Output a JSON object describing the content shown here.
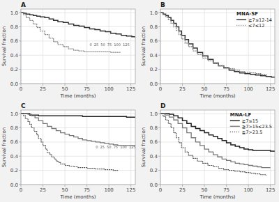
{
  "chart_data": [
    {
      "type": "step",
      "title": "A",
      "x_label": "Time (months)",
      "y_label": "Survival fraction",
      "xlim": [
        0,
        130
      ],
      "ylim": [
        0,
        1.05
      ],
      "xticks": [
        0,
        25,
        50,
        75,
        100,
        125
      ],
      "yticks": [
        {
          "value": 0,
          "label": "0.0"
        },
        0.2,
        0.4,
        0.6,
        0.8,
        {
          "value": 1,
          "label": "1.0"
        }
      ],
      "grid": true,
      "series": [
        {
          "color": "#333333",
          "line_style": "solid",
          "x": [
            0,
            3,
            6,
            10,
            14,
            18,
            22,
            27,
            32,
            37,
            42,
            48,
            54,
            60,
            66,
            72,
            78,
            84,
            90,
            96,
            102,
            108,
            114,
            120,
            126,
            130
          ],
          "values": [
            1.0,
            0.99,
            0.98,
            0.97,
            0.96,
            0.95,
            0.94,
            0.93,
            0.91,
            0.89,
            0.87,
            0.86,
            0.84,
            0.82,
            0.81,
            0.79,
            0.77,
            0.76,
            0.74,
            0.73,
            0.71,
            0.7,
            0.68,
            0.67,
            0.66,
            0.65
          ]
        },
        {
          "color": "#888888",
          "line_style": "dotted",
          "x": [
            0,
            3,
            6,
            10,
            14,
            18,
            22,
            27,
            32,
            37,
            42,
            48,
            54,
            60,
            66,
            72,
            78,
            84,
            90,
            96,
            102,
            108,
            114
          ],
          "values": [
            1.0,
            0.97,
            0.93,
            0.89,
            0.84,
            0.79,
            0.74,
            0.69,
            0.64,
            0.59,
            0.55,
            0.52,
            0.49,
            0.47,
            0.46,
            0.45,
            0.45,
            0.45,
            0.45,
            0.45,
            0.44,
            0.44,
            0.44
          ]
        }
      ],
      "annotations": [
        {
          "text": "0  25  50  75  100  125",
          "x": 78,
          "y": 0.57
        }
      ]
    },
    {
      "type": "step",
      "title": "B",
      "x_label": "Time (months)",
      "y_label": "Survival fraction",
      "xlim": [
        0,
        130
      ],
      "ylim": [
        0,
        1.05
      ],
      "xticks": [
        0,
        25,
        50,
        75,
        100,
        125
      ],
      "yticks": [
        {
          "value": 0,
          "label": "0.0"
        },
        0.2,
        0.4,
        0.6,
        0.8,
        {
          "value": 1,
          "label": "1.0"
        }
      ],
      "grid": true,
      "legend": "upper right",
      "legend_title": "MNA-SF",
      "series": [
        {
          "name": "≧7≤12-14",
          "color": "#333333",
          "line_style": "solid",
          "x": [
            0,
            3,
            6,
            9,
            12,
            15,
            18,
            21,
            24,
            28,
            32,
            37,
            42,
            48,
            54,
            60,
            66,
            72,
            78,
            84,
            90,
            96,
            102,
            108,
            114,
            120,
            126,
            130
          ],
          "values": [
            1.0,
            0.98,
            0.96,
            0.93,
            0.89,
            0.85,
            0.8,
            0.74,
            0.68,
            0.62,
            0.56,
            0.5,
            0.44,
            0.39,
            0.34,
            0.29,
            0.25,
            0.22,
            0.19,
            0.17,
            0.15,
            0.14,
            0.13,
            0.12,
            0.11,
            0.1,
            0.09,
            0.09
          ]
        },
        {
          "name": "≤7≤12",
          "color": "#888888",
          "line_style": "dotted",
          "x": [
            0,
            3,
            6,
            9,
            12,
            15,
            18,
            21,
            24,
            28,
            32,
            37,
            42,
            48,
            54,
            60,
            66,
            72,
            78,
            84,
            90,
            96,
            102,
            108,
            114,
            120
          ],
          "values": [
            1.0,
            0.97,
            0.94,
            0.9,
            0.85,
            0.8,
            0.75,
            0.69,
            0.63,
            0.57,
            0.52,
            0.46,
            0.41,
            0.36,
            0.32,
            0.28,
            0.25,
            0.23,
            0.21,
            0.19,
            0.17,
            0.16,
            0.15,
            0.14,
            0.13,
            0.12
          ]
        }
      ]
    },
    {
      "type": "step",
      "title": "C",
      "x_label": "Time (months)",
      "y_label": "Survival fraction",
      "xlim": [
        0,
        130
      ],
      "ylim": [
        0,
        1.05
      ],
      "xticks": [
        0,
        25,
        50,
        75,
        100,
        125
      ],
      "yticks": [
        {
          "value": 0,
          "label": "0.0"
        },
        0.2,
        0.4,
        0.6,
        0.8,
        {
          "value": 1,
          "label": "1.0"
        }
      ],
      "grid": true,
      "series": [
        {
          "color": "#222222",
          "line_style": "solid",
          "x": [
            0,
            10,
            20,
            30,
            40,
            50,
            60,
            70,
            80,
            90,
            100,
            110,
            120,
            130
          ],
          "values": [
            1.0,
            0.98,
            0.97,
            0.97,
            0.97,
            0.97,
            0.97,
            0.96,
            0.96,
            0.96,
            0.96,
            0.96,
            0.95,
            0.95
          ]
        },
        {
          "color": "#777777",
          "line_style": "solid",
          "x": [
            0,
            5,
            8,
            12,
            16,
            20,
            25,
            30,
            35,
            40,
            45,
            50,
            55,
            60,
            65,
            70,
            75,
            80,
            85,
            90,
            95,
            100,
            105,
            110,
            115,
            120,
            125,
            130
          ],
          "values": [
            1.0,
            1.0,
            0.99,
            0.97,
            0.94,
            0.9,
            0.86,
            0.82,
            0.79,
            0.76,
            0.73,
            0.71,
            0.69,
            0.67,
            0.65,
            0.63,
            0.62,
            0.61,
            0.6,
            0.59,
            0.58,
            0.57,
            0.56,
            0.55,
            0.55,
            0.55,
            0.55,
            0.55
          ]
        },
        {
          "color": "#555555",
          "line_style": "dotted",
          "x": [
            0,
            3,
            5,
            8,
            10,
            12,
            15,
            18,
            20,
            23,
            25,
            28,
            30,
            33,
            35,
            38,
            40,
            43,
            45,
            50,
            55,
            60,
            65,
            70,
            75,
            80,
            85,
            90,
            95,
            100,
            105,
            110
          ],
          "values": [
            1.0,
            0.97,
            0.93,
            0.89,
            0.85,
            0.8,
            0.75,
            0.7,
            0.65,
            0.6,
            0.55,
            0.5,
            0.45,
            0.42,
            0.39,
            0.36,
            0.33,
            0.31,
            0.29,
            0.27,
            0.26,
            0.25,
            0.24,
            0.24,
            0.23,
            0.23,
            0.22,
            0.22,
            0.21,
            0.21,
            0.2,
            0.2
          ]
        }
      ],
      "annotations": [
        {
          "text": "0  25  50  75  100  125",
          "x": 85,
          "y": 0.55
        }
      ]
    },
    {
      "type": "step",
      "title": "D",
      "x_label": "Time (months)",
      "y_label": "Survival fraction",
      "xlim": [
        0,
        130
      ],
      "ylim": [
        0,
        1.05
      ],
      "xticks": [
        0,
        25,
        50,
        75,
        100,
        125
      ],
      "yticks": [
        {
          "value": 0,
          "label": "0.0"
        },
        0.2,
        0.4,
        0.6,
        0.8,
        {
          "value": 1,
          "label": "1.0"
        }
      ],
      "grid": true,
      "legend": "upper right",
      "legend_title": "MNA-LF",
      "series": [
        {
          "name": "≧7≤15",
          "color": "#222222",
          "line_style": "solid",
          "x": [
            0,
            5,
            10,
            15,
            20,
            25,
            30,
            35,
            40,
            45,
            50,
            55,
            60,
            65,
            70,
            75,
            80,
            85,
            90,
            95,
            100,
            105,
            110,
            115,
            120,
            125,
            130
          ],
          "values": [
            1.0,
            1.0,
            0.99,
            0.97,
            0.94,
            0.9,
            0.86,
            0.82,
            0.79,
            0.76,
            0.73,
            0.7,
            0.68,
            0.65,
            0.62,
            0.59,
            0.56,
            0.54,
            0.52,
            0.5,
            0.49,
            0.48,
            0.48,
            0.48,
            0.48,
            0.47,
            0.47
          ]
        },
        {
          "name": "≧7>15≤23.5",
          "color": "#777777",
          "line_style": "solid",
          "x": [
            0,
            5,
            10,
            15,
            20,
            25,
            30,
            35,
            40,
            45,
            50,
            55,
            60,
            65,
            70,
            75,
            80,
            85,
            90,
            95,
            100,
            105,
            110,
            115,
            120,
            125
          ],
          "values": [
            1.0,
            0.98,
            0.95,
            0.91,
            0.86,
            0.8,
            0.73,
            0.66,
            0.6,
            0.55,
            0.5,
            0.46,
            0.42,
            0.39,
            0.36,
            0.34,
            0.32,
            0.3,
            0.29,
            0.28,
            0.27,
            0.26,
            0.25,
            0.24,
            0.24,
            0.24
          ]
        },
        {
          "name": "≧7>23.5",
          "color": "#555555",
          "line_style": "dotted",
          "x": [
            0,
            3,
            6,
            9,
            12,
            15,
            18,
            21,
            24,
            28,
            32,
            37,
            42,
            48,
            54,
            60,
            66,
            72,
            78,
            84,
            90,
            96,
            102,
            108,
            114,
            120
          ],
          "values": [
            1.0,
            0.96,
            0.91,
            0.86,
            0.8,
            0.73,
            0.66,
            0.59,
            0.52,
            0.46,
            0.41,
            0.37,
            0.33,
            0.3,
            0.27,
            0.25,
            0.23,
            0.21,
            0.2,
            0.19,
            0.18,
            0.17,
            0.16,
            0.15,
            0.14,
            0.13
          ]
        }
      ]
    }
  ]
}
